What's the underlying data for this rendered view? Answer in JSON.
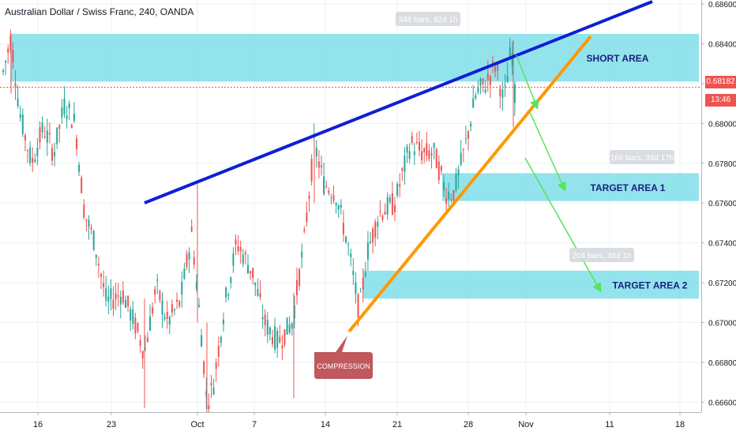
{
  "header": {
    "title": "Australian Dollar / Swiss Franc, 240, OANDA"
  },
  "price": {
    "current": "0.68182",
    "countdown": "13:46",
    "color": "#ef5350"
  },
  "chart_data": {
    "type": "candlestick",
    "y_ticks": [
      "0.68600",
      "0.68400",
      "0.68200",
      "0.68000",
      "0.67800",
      "0.67600",
      "0.67400",
      "0.67200",
      "0.67000",
      "0.66800",
      "0.66600"
    ],
    "x_ticks": [
      "16",
      "23",
      "Oct",
      "7",
      "14",
      "21",
      "28",
      "Nov",
      "11",
      "18"
    ],
    "ylim": [
      0.6655,
      0.6862
    ],
    "zones": [
      {
        "label": "SHORT AREA",
        "y_top": 0.6845,
        "y_bottom": 0.6821
      },
      {
        "label": "TARGET AREA 1",
        "y_top": 0.6775,
        "y_bottom": 0.6761
      },
      {
        "label": "TARGET AREA 2",
        "y_top": 0.6726,
        "y_bottom": 0.6712
      }
    ],
    "measure_labels": [
      "348 bars, 82d 1h",
      "166 bars, 39d 17h",
      "204 bars, 48d 1h"
    ],
    "callout": "COMPRESSION",
    "colors": {
      "up": "#26a69a",
      "down": "#ef5350",
      "zone": "#80deea",
      "resistance": "#0d1fd6",
      "support": "#ff9800",
      "arrow": "#57e35a",
      "callout": "#c0585d"
    }
  }
}
